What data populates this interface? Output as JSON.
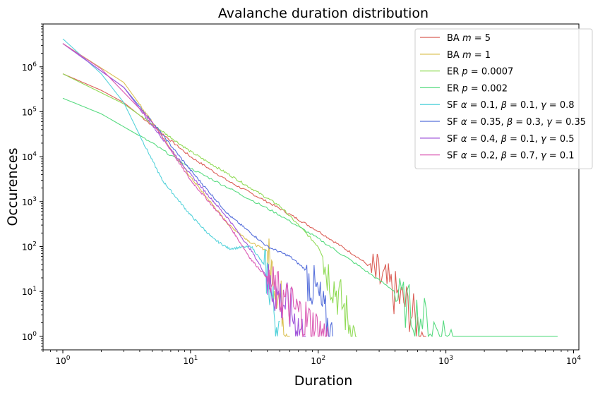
{
  "chart_data": {
    "type": "line",
    "title": "Avalanche duration distribution",
    "xlabel": "Duration",
    "ylabel": "Occurences",
    "xscale": "log",
    "yscale": "log",
    "xlim": [
      0.7,
      11000
    ],
    "ylim": [
      0.5,
      9000000
    ],
    "grid": false,
    "legend_position": "top-right",
    "x_ticks": [
      1,
      10,
      100,
      1000,
      10000
    ],
    "x_tick_labels": [
      {
        "base": "10",
        "exp": "0"
      },
      {
        "base": "10",
        "exp": "1"
      },
      {
        "base": "10",
        "exp": "2"
      },
      {
        "base": "10",
        "exp": "3"
      },
      {
        "base": "10",
        "exp": "4"
      }
    ],
    "y_ticks": [
      1,
      10,
      100,
      1000,
      10000,
      100000,
      1000000
    ],
    "y_tick_labels": [
      {
        "base": "10",
        "exp": "0"
      },
      {
        "base": "10",
        "exp": "1"
      },
      {
        "base": "10",
        "exp": "2"
      },
      {
        "base": "10",
        "exp": "3"
      },
      {
        "base": "10",
        "exp": "4"
      },
      {
        "base": "10",
        "exp": "5"
      },
      {
        "base": "10",
        "exp": "6"
      }
    ],
    "series": [
      {
        "name": "BA m = 5",
        "legend": [
          {
            "t": "BA "
          },
          {
            "t": "m",
            "i": true
          },
          {
            "t": " = 5"
          }
        ],
        "color": "#db5f57",
        "points": [
          [
            1,
            700000
          ],
          [
            2,
            300000
          ],
          [
            3,
            160000
          ],
          [
            5,
            50000
          ],
          [
            10,
            10000
          ],
          [
            20,
            2800
          ],
          [
            50,
            700
          ],
          [
            100,
            220
          ],
          [
            200,
            60
          ],
          [
            300,
            25
          ],
          [
            500,
            6
          ],
          [
            700,
            1
          ]
        ],
        "noise_start": 250,
        "noise_end": 700
      },
      {
        "name": "BA m = 1",
        "legend": [
          {
            "t": "BA "
          },
          {
            "t": "m",
            "i": true
          },
          {
            "t": " = 1"
          }
        ],
        "color": "#dbc257",
        "points": [
          [
            1,
            3300000
          ],
          [
            3,
            450000
          ],
          [
            5,
            60000
          ],
          [
            10,
            3500
          ],
          [
            20,
            300
          ],
          [
            30,
            120
          ],
          [
            40,
            80
          ],
          [
            50,
            10
          ],
          [
            60,
            1
          ]
        ],
        "noise_start": 40,
        "noise_end": 70
      },
      {
        "name": "ER p = 0.0007",
        "legend": [
          {
            "t": "ER "
          },
          {
            "t": "p",
            "i": true
          },
          {
            "t": " = 0.0007"
          }
        ],
        "color": "#91db57",
        "points": [
          [
            1,
            700000
          ],
          [
            3,
            150000
          ],
          [
            10,
            13000
          ],
          [
            20,
            4000
          ],
          [
            50,
            800
          ],
          [
            70,
            300
          ],
          [
            100,
            100
          ],
          [
            130,
            20
          ],
          [
            160,
            5
          ],
          [
            200,
            1
          ]
        ],
        "noise_start": 110,
        "noise_end": 200
      },
      {
        "name": "ER p = 0.002",
        "legend": [
          {
            "t": "ER "
          },
          {
            "t": "p",
            "i": true
          },
          {
            "t": " = 0.002"
          }
        ],
        "color": "#57db80",
        "points": [
          [
            1,
            200000
          ],
          [
            2,
            90000
          ],
          [
            5,
            20000
          ],
          [
            10,
            5500
          ],
          [
            20,
            2000
          ],
          [
            50,
            500
          ],
          [
            100,
            150
          ],
          [
            200,
            40
          ],
          [
            400,
            10
          ],
          [
            800,
            2
          ],
          [
            1200,
            1
          ],
          [
            7500,
            1
          ]
        ],
        "noise_start": 400,
        "noise_end": 1200
      },
      {
        "name": "SF α = 0.1, β = 0.1, γ = 0.8",
        "legend": [
          {
            "t": "SF "
          },
          {
            "t": "α",
            "i": true
          },
          {
            "t": " = 0.1, "
          },
          {
            "t": "β",
            "i": true
          },
          {
            "t": " = 0.1, "
          },
          {
            "t": "γ",
            "i": true
          },
          {
            "t": " = 0.8"
          }
        ],
        "color": "#57d3db",
        "points": [
          [
            1,
            4200000
          ],
          [
            2,
            700000
          ],
          [
            3,
            160000
          ],
          [
            4,
            30000
          ],
          [
            6,
            3000
          ],
          [
            10,
            500
          ],
          [
            15,
            150
          ],
          [
            20,
            90
          ],
          [
            30,
            100
          ],
          [
            40,
            30
          ],
          [
            50,
            1
          ]
        ],
        "noise_start": 38,
        "noise_end": 50
      },
      {
        "name": "SF α = 0.35, β = 0.3, γ = 0.35",
        "legend": [
          {
            "t": "SF "
          },
          {
            "t": "α",
            "i": true
          },
          {
            "t": " = 0.35, "
          },
          {
            "t": "β",
            "i": true
          },
          {
            "t": " = 0.3, "
          },
          {
            "t": "γ",
            "i": true
          },
          {
            "t": " = 0.35"
          }
        ],
        "color": "#5770db",
        "points": [
          [
            1,
            3300000
          ],
          [
            3,
            350000
          ],
          [
            5,
            60000
          ],
          [
            10,
            5000
          ],
          [
            20,
            500
          ],
          [
            40,
            100
          ],
          [
            60,
            60
          ],
          [
            80,
            30
          ],
          [
            100,
            10
          ],
          [
            130,
            1
          ]
        ],
        "noise_start": 80,
        "noise_end": 130
      },
      {
        "name": "SF α = 0.4, β = 0.1, γ = 0.5",
        "legend": [
          {
            "t": "SF "
          },
          {
            "t": "α",
            "i": true
          },
          {
            "t": " = 0.4, "
          },
          {
            "t": "β",
            "i": true
          },
          {
            "t": " = 0.1, "
          },
          {
            "t": "γ",
            "i": true
          },
          {
            "t": " = 0.5"
          }
        ],
        "color": "#a157db",
        "points": [
          [
            1,
            3300000
          ],
          [
            3,
            350000
          ],
          [
            5,
            50000
          ],
          [
            10,
            4000
          ],
          [
            20,
            400
          ],
          [
            30,
            80
          ],
          [
            40,
            20
          ],
          [
            60,
            5
          ],
          [
            80,
            1
          ]
        ],
        "noise_start": 40,
        "noise_end": 80
      },
      {
        "name": "SF α = 0.2, β = 0.7, γ = 0.1",
        "legend": [
          {
            "t": "SF "
          },
          {
            "t": "α",
            "i": true
          },
          {
            "t": " = 0.2, "
          },
          {
            "t": "β",
            "i": true
          },
          {
            "t": " = 0.7, "
          },
          {
            "t": "γ",
            "i": true
          },
          {
            "t": " = 0.1"
          }
        ],
        "color": "#db57b2",
        "points": [
          [
            1,
            3300000
          ],
          [
            2,
            900000
          ],
          [
            5,
            60000
          ],
          [
            10,
            3000
          ],
          [
            20,
            300
          ],
          [
            30,
            50
          ],
          [
            50,
            10
          ],
          [
            80,
            3
          ],
          [
            120,
            1
          ]
        ],
        "noise_start": 40,
        "noise_end": 120
      }
    ]
  }
}
